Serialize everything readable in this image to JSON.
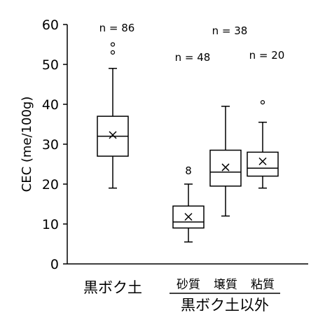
{
  "chart_data": {
    "type": "boxplot",
    "ylabel": "CEC (me/100g)",
    "ylim": [
      0,
      60
    ],
    "yticks": [
      "0",
      "10",
      "20",
      "30",
      "40",
      "50",
      "60"
    ],
    "grid": false,
    "boxes": [
      {
        "category": "黒ボク土",
        "n_label": "n = 86",
        "min": 19,
        "q1": 27,
        "median": 32,
        "q3": 37,
        "max": 49,
        "mean": 32.3,
        "outliers": [
          53,
          55
        ]
      },
      {
        "category": "砂質",
        "n_label": "n = 48",
        "min": 5.5,
        "q1": 9,
        "median": 10.5,
        "q3": 14.5,
        "max": 20,
        "mean": 11.8,
        "outliers": []
      },
      {
        "category": "壌質",
        "n_label": "n = 38",
        "min": 12,
        "q1": 19.5,
        "median": 23,
        "q3": 28.5,
        "max": 39.5,
        "mean": 24.2,
        "outliers": []
      },
      {
        "category": "粘質",
        "n_label": "n = 20",
        "min": 19,
        "q1": 22,
        "median": 24,
        "q3": 28,
        "max": 35.5,
        "mean": 25.7,
        "outliers": [
          40.5
        ]
      }
    ],
    "annotation": {
      "text": "8",
      "near_category": "砂質",
      "y": 23.5
    },
    "group_label": "黒ボク土以外"
  }
}
